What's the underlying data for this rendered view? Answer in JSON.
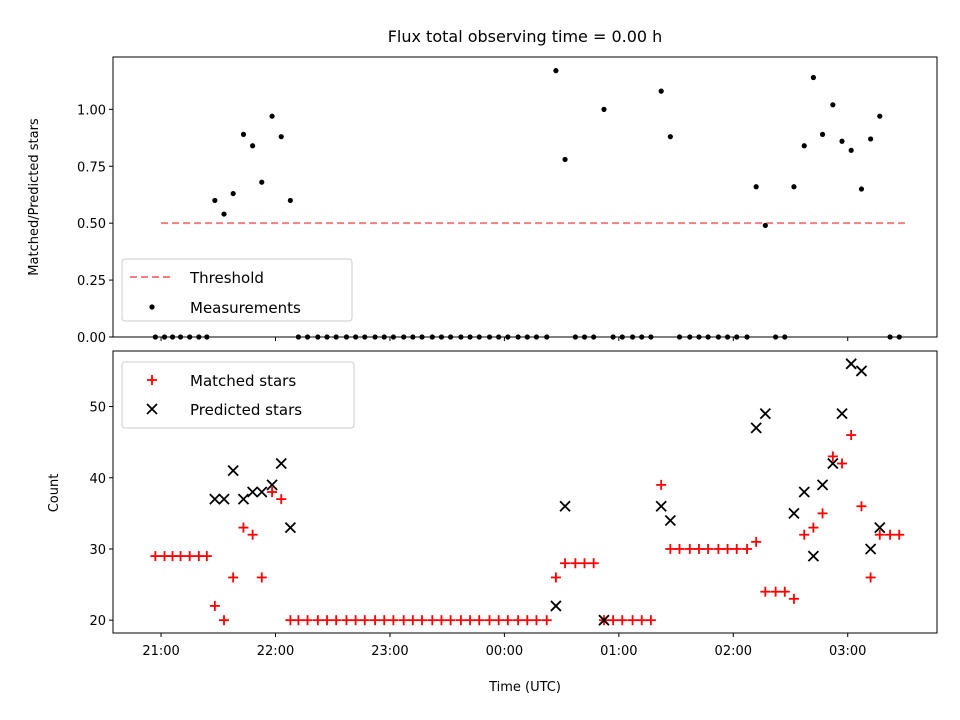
{
  "chart_data": [
    {
      "type": "scatter",
      "title": "Flux total observing time = 0.00 h",
      "ylabel": "Matched/Predicted stars",
      "xlabel": "",
      "ylim": [
        0,
        1.23
      ],
      "yticks": [
        "0.00",
        "0.25",
        "0.50",
        "0.75",
        "1.00"
      ],
      "grid": false,
      "legend": "lower-left",
      "threshold": {
        "name": "Threshold",
        "value": 0.5,
        "x_start": 21.0,
        "x_end": 27.5,
        "color": "#f08080"
      },
      "series": [
        {
          "name": "Measurements",
          "color": "#000000",
          "points": [
            [
              20.95,
              0
            ],
            [
              21.03,
              0
            ],
            [
              21.1,
              0
            ],
            [
              21.17,
              0
            ],
            [
              21.25,
              0
            ],
            [
              21.33,
              0
            ],
            [
              21.4,
              0
            ],
            [
              21.47,
              0.6
            ],
            [
              21.55,
              0.54
            ],
            [
              21.63,
              0.63
            ],
            [
              21.72,
              0.89
            ],
            [
              21.8,
              0.84
            ],
            [
              21.88,
              0.68
            ],
            [
              21.97,
              0.97
            ],
            [
              22.05,
              0.88
            ],
            [
              22.13,
              0.6
            ],
            [
              22.2,
              0
            ],
            [
              22.28,
              0
            ],
            [
              22.37,
              0
            ],
            [
              22.45,
              0
            ],
            [
              22.53,
              0
            ],
            [
              22.62,
              0
            ],
            [
              22.7,
              0
            ],
            [
              22.78,
              0
            ],
            [
              22.87,
              0
            ],
            [
              22.95,
              0
            ],
            [
              23.03,
              0
            ],
            [
              23.12,
              0
            ],
            [
              23.2,
              0
            ],
            [
              23.28,
              0
            ],
            [
              23.37,
              0
            ],
            [
              23.45,
              0
            ],
            [
              23.53,
              0
            ],
            [
              23.62,
              0
            ],
            [
              23.7,
              0
            ],
            [
              23.78,
              0
            ],
            [
              23.87,
              0
            ],
            [
              23.95,
              0
            ],
            [
              24.03,
              0
            ],
            [
              24.12,
              0
            ],
            [
              24.2,
              0
            ],
            [
              24.28,
              0
            ],
            [
              24.37,
              0
            ],
            [
              24.45,
              1.17
            ],
            [
              24.53,
              0.78
            ],
            [
              24.62,
              0
            ],
            [
              24.7,
              0
            ],
            [
              24.78,
              0
            ],
            [
              24.87,
              1.0
            ],
            [
              24.95,
              0
            ],
            [
              25.03,
              0
            ],
            [
              25.12,
              0
            ],
            [
              25.2,
              0
            ],
            [
              25.28,
              0
            ],
            [
              25.37,
              1.08
            ],
            [
              25.45,
              0.88
            ],
            [
              25.53,
              0
            ],
            [
              25.62,
              0
            ],
            [
              25.7,
              0
            ],
            [
              25.78,
              0
            ],
            [
              25.87,
              0
            ],
            [
              25.95,
              0
            ],
            [
              26.03,
              0
            ],
            [
              26.12,
              0
            ],
            [
              26.2,
              0.66
            ],
            [
              26.28,
              0.49
            ],
            [
              26.37,
              0
            ],
            [
              26.45,
              0
            ],
            [
              26.53,
              0.66
            ],
            [
              26.62,
              0.84
            ],
            [
              26.7,
              1.14
            ],
            [
              26.78,
              0.89
            ],
            [
              26.87,
              1.02
            ],
            [
              26.95,
              0.86
            ],
            [
              27.03,
              0.82
            ],
            [
              27.12,
              0.65
            ],
            [
              27.2,
              0.87
            ],
            [
              27.28,
              0.97
            ],
            [
              27.37,
              0
            ],
            [
              27.45,
              0
            ]
          ]
        }
      ]
    },
    {
      "type": "scatter",
      "xlabel": "Time (UTC)",
      "ylabel": "Count",
      "xlim": [
        20.58,
        27.78
      ],
      "ylim": [
        18.2,
        57.8
      ],
      "yticks": [
        "20",
        "30",
        "40",
        "50"
      ],
      "xticks": [
        "21:00",
        "22:00",
        "23:00",
        "00:00",
        "01:00",
        "02:00",
        "03:00"
      ],
      "xtick_values": [
        21,
        22,
        23,
        24,
        25,
        26,
        27
      ],
      "grid": false,
      "legend": "top-left",
      "series": [
        {
          "name": "Matched stars",
          "color": "#ff0000",
          "marker": "plus",
          "points": [
            [
              20.95,
              29
            ],
            [
              21.03,
              29
            ],
            [
              21.1,
              29
            ],
            [
              21.17,
              29
            ],
            [
              21.25,
              29
            ],
            [
              21.33,
              29
            ],
            [
              21.4,
              29
            ],
            [
              21.47,
              22
            ],
            [
              21.55,
              20
            ],
            [
              21.63,
              26
            ],
            [
              21.72,
              33
            ],
            [
              21.8,
              32
            ],
            [
              21.88,
              26
            ],
            [
              21.97,
              38
            ],
            [
              22.05,
              37
            ],
            [
              22.13,
              20
            ],
            [
              22.2,
              20
            ],
            [
              22.28,
              20
            ],
            [
              22.37,
              20
            ],
            [
              22.45,
              20
            ],
            [
              22.53,
              20
            ],
            [
              22.62,
              20
            ],
            [
              22.7,
              20
            ],
            [
              22.78,
              20
            ],
            [
              22.87,
              20
            ],
            [
              22.95,
              20
            ],
            [
              23.03,
              20
            ],
            [
              23.12,
              20
            ],
            [
              23.2,
              20
            ],
            [
              23.28,
              20
            ],
            [
              23.37,
              20
            ],
            [
              23.45,
              20
            ],
            [
              23.53,
              20
            ],
            [
              23.62,
              20
            ],
            [
              23.7,
              20
            ],
            [
              23.78,
              20
            ],
            [
              23.87,
              20
            ],
            [
              23.95,
              20
            ],
            [
              24.03,
              20
            ],
            [
              24.12,
              20
            ],
            [
              24.2,
              20
            ],
            [
              24.28,
              20
            ],
            [
              24.37,
              20
            ],
            [
              24.45,
              26
            ],
            [
              24.53,
              28
            ],
            [
              24.62,
              28
            ],
            [
              24.7,
              28
            ],
            [
              24.78,
              28
            ],
            [
              24.87,
              20
            ],
            [
              24.95,
              20
            ],
            [
              25.03,
              20
            ],
            [
              25.12,
              20
            ],
            [
              25.2,
              20
            ],
            [
              25.28,
              20
            ],
            [
              25.37,
              39
            ],
            [
              25.45,
              30
            ],
            [
              25.53,
              30
            ],
            [
              25.62,
              30
            ],
            [
              25.7,
              30
            ],
            [
              25.78,
              30
            ],
            [
              25.87,
              30
            ],
            [
              25.95,
              30
            ],
            [
              26.03,
              30
            ],
            [
              26.12,
              30
            ],
            [
              26.2,
              31
            ],
            [
              26.28,
              24
            ],
            [
              26.37,
              24
            ],
            [
              26.45,
              24
            ],
            [
              26.53,
              23
            ],
            [
              26.62,
              32
            ],
            [
              26.7,
              33
            ],
            [
              26.78,
              35
            ],
            [
              26.87,
              43
            ],
            [
              26.95,
              42
            ],
            [
              27.03,
              46
            ],
            [
              27.12,
              36
            ],
            [
              27.2,
              26
            ],
            [
              27.28,
              32
            ],
            [
              27.37,
              32
            ],
            [
              27.45,
              32
            ]
          ]
        },
        {
          "name": "Predicted stars",
          "color": "#000000",
          "marker": "x",
          "points": [
            [
              21.47,
              37
            ],
            [
              21.55,
              37
            ],
            [
              21.63,
              41
            ],
            [
              21.72,
              37
            ],
            [
              21.8,
              38
            ],
            [
              21.88,
              38
            ],
            [
              21.97,
              39
            ],
            [
              22.05,
              42
            ],
            [
              22.13,
              33
            ],
            [
              24.45,
              22
            ],
            [
              24.53,
              36
            ],
            [
              24.87,
              20
            ],
            [
              25.37,
              36
            ],
            [
              25.45,
              34
            ],
            [
              26.2,
              47
            ],
            [
              26.28,
              49
            ],
            [
              26.53,
              35
            ],
            [
              26.62,
              38
            ],
            [
              26.7,
              29
            ],
            [
              26.78,
              39
            ],
            [
              26.87,
              42
            ],
            [
              26.95,
              49
            ],
            [
              27.03,
              56
            ],
            [
              27.12,
              55
            ],
            [
              27.2,
              30
            ],
            [
              27.28,
              33
            ]
          ]
        }
      ]
    }
  ]
}
